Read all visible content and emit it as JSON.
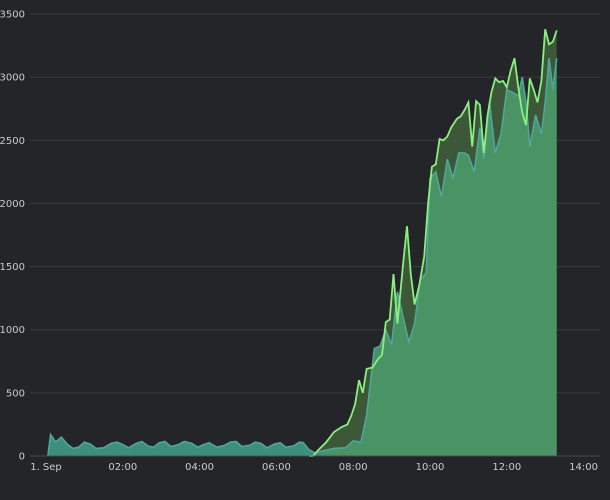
{
  "chart_data": {
    "type": "area",
    "title": "",
    "xlabel": "",
    "ylabel": "",
    "xlim_hours": [
      0,
      14.2
    ],
    "ylim": [
      0,
      3500
    ],
    "grid": true,
    "legend": "none",
    "x_ticks": [
      {
        "hour": 0,
        "label": "1. Sep"
      },
      {
        "hour": 2,
        "label": "02:00"
      },
      {
        "hour": 4,
        "label": "04:00"
      },
      {
        "hour": 6,
        "label": "06:00"
      },
      {
        "hour": 8,
        "label": "08:00"
      },
      {
        "hour": 10,
        "label": "10:00"
      },
      {
        "hour": 12,
        "label": "12:00"
      },
      {
        "hour": 14,
        "label": "14:00"
      }
    ],
    "y_ticks": [
      0,
      500,
      1000,
      1500,
      2000,
      2500,
      3000,
      3500
    ],
    "colors": {
      "background": "#242528",
      "series_a_line": "#4fa69a",
      "series_a_fill": "#3b8f86",
      "series_b_line": "#8af07e",
      "series_b_fill": "#4a9a6a",
      "overlap_fill": "#3f5a3a"
    },
    "series": [
      {
        "key": "a",
        "values": [
          [
            0.05,
            0
          ],
          [
            0.12,
            170
          ],
          [
            0.25,
            110
          ],
          [
            0.4,
            150
          ],
          [
            0.55,
            95
          ],
          [
            0.7,
            60
          ],
          [
            0.85,
            70
          ],
          [
            1.0,
            110
          ],
          [
            1.15,
            95
          ],
          [
            1.3,
            60
          ],
          [
            1.5,
            65
          ],
          [
            1.7,
            100
          ],
          [
            1.85,
            110
          ],
          [
            2.0,
            90
          ],
          [
            2.15,
            65
          ],
          [
            2.35,
            100
          ],
          [
            2.5,
            115
          ],
          [
            2.65,
            80
          ],
          [
            2.8,
            70
          ],
          [
            2.95,
            105
          ],
          [
            3.1,
            115
          ],
          [
            3.25,
            75
          ],
          [
            3.45,
            90
          ],
          [
            3.6,
            115
          ],
          [
            3.8,
            100
          ],
          [
            3.95,
            70
          ],
          [
            4.1,
            90
          ],
          [
            4.25,
            105
          ],
          [
            4.45,
            70
          ],
          [
            4.65,
            85
          ],
          [
            4.8,
            110
          ],
          [
            4.95,
            115
          ],
          [
            5.1,
            75
          ],
          [
            5.3,
            85
          ],
          [
            5.45,
            110
          ],
          [
            5.6,
            100
          ],
          [
            5.75,
            65
          ],
          [
            5.95,
            95
          ],
          [
            6.1,
            105
          ],
          [
            6.25,
            70
          ],
          [
            6.45,
            80
          ],
          [
            6.6,
            110
          ],
          [
            6.7,
            105
          ],
          [
            6.85,
            50
          ],
          [
            7.0,
            25
          ],
          [
            7.2,
            40
          ],
          [
            7.5,
            60
          ],
          [
            7.8,
            65
          ],
          [
            8.0,
            120
          ],
          [
            8.2,
            110
          ],
          [
            8.35,
            320
          ],
          [
            8.55,
            850
          ],
          [
            8.7,
            870
          ],
          [
            8.85,
            1000
          ],
          [
            9.0,
            880
          ],
          [
            9.15,
            1300
          ],
          [
            9.3,
            1100
          ],
          [
            9.45,
            900
          ],
          [
            9.6,
            1050
          ],
          [
            9.75,
            1400
          ],
          [
            9.9,
            1450
          ],
          [
            10.0,
            2200
          ],
          [
            10.15,
            2250
          ],
          [
            10.3,
            2050
          ],
          [
            10.45,
            2350
          ],
          [
            10.6,
            2200
          ],
          [
            10.75,
            2400
          ],
          [
            10.9,
            2400
          ],
          [
            11.0,
            2380
          ],
          [
            11.15,
            2250
          ],
          [
            11.3,
            2600
          ],
          [
            11.4,
            2350
          ],
          [
            11.55,
            2800
          ],
          [
            11.7,
            2400
          ],
          [
            11.85,
            2550
          ],
          [
            12.0,
            2900
          ],
          [
            12.15,
            2880
          ],
          [
            12.3,
            2850
          ],
          [
            12.4,
            3000
          ],
          [
            12.5,
            2800
          ],
          [
            12.6,
            2450
          ],
          [
            12.75,
            2700
          ],
          [
            12.9,
            2550
          ],
          [
            13.0,
            2800
          ],
          [
            13.1,
            3150
          ],
          [
            13.2,
            2900
          ],
          [
            13.3,
            3150
          ]
        ]
      },
      {
        "key": "b",
        "values": [
          [
            6.85,
            0
          ],
          [
            6.95,
            0
          ],
          [
            7.1,
            50
          ],
          [
            7.3,
            110
          ],
          [
            7.5,
            190
          ],
          [
            7.7,
            230
          ],
          [
            7.85,
            250
          ],
          [
            7.95,
            320
          ],
          [
            8.05,
            410
          ],
          [
            8.15,
            600
          ],
          [
            8.25,
            500
          ],
          [
            8.35,
            690
          ],
          [
            8.5,
            700
          ],
          [
            8.65,
            770
          ],
          [
            8.75,
            800
          ],
          [
            8.85,
            1060
          ],
          [
            8.95,
            1080
          ],
          [
            9.05,
            1440
          ],
          [
            9.15,
            1050
          ],
          [
            9.3,
            1520
          ],
          [
            9.4,
            1820
          ],
          [
            9.5,
            1440
          ],
          [
            9.6,
            1200
          ],
          [
            9.72,
            1350
          ],
          [
            9.85,
            1580
          ],
          [
            9.95,
            2000
          ],
          [
            10.05,
            2290
          ],
          [
            10.15,
            2310
          ],
          [
            10.25,
            2510
          ],
          [
            10.35,
            2500
          ],
          [
            10.45,
            2530
          ],
          [
            10.55,
            2600
          ],
          [
            10.7,
            2670
          ],
          [
            10.8,
            2690
          ],
          [
            10.9,
            2740
          ],
          [
            11.0,
            2800
          ],
          [
            11.1,
            2450
          ],
          [
            11.2,
            2810
          ],
          [
            11.3,
            2780
          ],
          [
            11.4,
            2400
          ],
          [
            11.5,
            2700
          ],
          [
            11.6,
            2880
          ],
          [
            11.7,
            2990
          ],
          [
            11.8,
            2960
          ],
          [
            11.9,
            2970
          ],
          [
            12.0,
            2920
          ],
          [
            12.1,
            3050
          ],
          [
            12.2,
            3150
          ],
          [
            12.3,
            2920
          ],
          [
            12.4,
            2720
          ],
          [
            12.5,
            2620
          ],
          [
            12.6,
            2990
          ],
          [
            12.7,
            2900
          ],
          [
            12.8,
            2800
          ],
          [
            12.9,
            2970
          ],
          [
            13.0,
            3380
          ],
          [
            13.1,
            3260
          ],
          [
            13.2,
            3280
          ],
          [
            13.3,
            3370
          ]
        ]
      }
    ]
  }
}
